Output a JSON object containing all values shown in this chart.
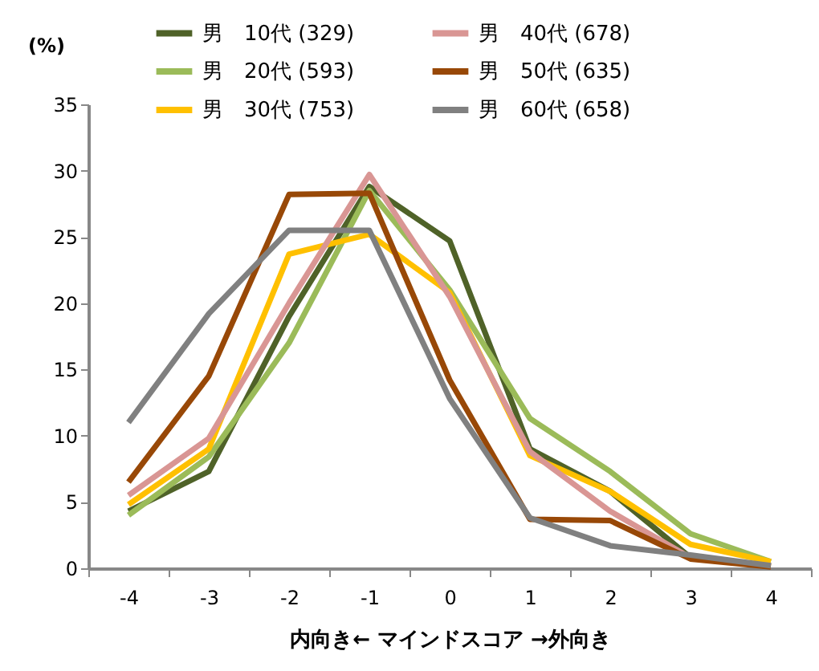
{
  "chart_data": {
    "type": "line",
    "xlabel": "内向き← マインドスコア →外向き",
    "ylabel": "(%)",
    "categories": [
      "-4",
      "-3",
      "-2",
      "-1",
      "0",
      "1",
      "2",
      "3",
      "4"
    ],
    "series": [
      {
        "name": "男　10代 (329)",
        "color": "#4f6228",
        "values": [
          4.3,
          7.3,
          19,
          28.8,
          24.7,
          9,
          5.8,
          0.8,
          0.2
        ]
      },
      {
        "name": "男　20代 (593)",
        "color": "#9bbb59",
        "values": [
          4,
          8.4,
          17,
          28.5,
          21,
          11.3,
          7.3,
          2.6,
          0.5
        ]
      },
      {
        "name": "男　30代 (753)",
        "color": "#ffc000",
        "values": [
          4.8,
          9,
          23.7,
          25.2,
          20.8,
          8.5,
          5.8,
          1.8,
          0.5
        ]
      },
      {
        "name": "男　40代 (678)",
        "color": "#d99694",
        "values": [
          5.5,
          9.8,
          20,
          29.7,
          20.5,
          8.8,
          4.3,
          0.8,
          0.2
        ]
      },
      {
        "name": "男　50代 (635)",
        "color": "#984807",
        "values": [
          6.5,
          14.5,
          28.2,
          28.3,
          14.2,
          3.7,
          3.6,
          0.7,
          0.1
        ]
      },
      {
        "name": "男　60代 (658)",
        "color": "#808080",
        "values": [
          11,
          19.2,
          25.5,
          25.5,
          12.8,
          3.8,
          1.7,
          1,
          0.2
        ]
      }
    ],
    "ylim": [
      0,
      35
    ],
    "yticks": [
      0,
      5,
      10,
      15,
      20,
      25,
      30,
      35
    ],
    "grid": false,
    "legend": "top",
    "marker": "none",
    "line_style": "solid"
  }
}
